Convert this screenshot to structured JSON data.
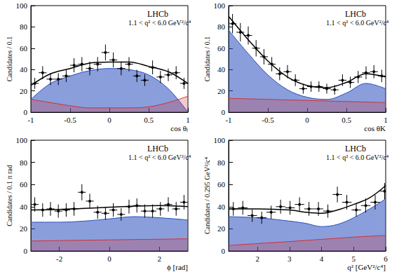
{
  "chart_data": [
    {
      "type": "scatter",
      "x_label": "cos θₗ",
      "y_label": "Candidates / 0.1",
      "annotations": [
        "LHCb",
        "1.1 < q² < 6.0 GeV²/c⁴"
      ],
      "xlim": [
        -1,
        1
      ],
      "xticks": [
        -1,
        -0.5,
        0,
        0.5,
        1
      ],
      "ylim": [
        0,
        100
      ],
      "yticks": [
        0,
        20,
        40,
        60,
        80,
        100
      ],
      "series": [
        {
          "type": "area",
          "color": "#2a4fc0",
          "x": [
            -1,
            -0.75,
            -0.5,
            -0.25,
            0,
            0.25,
            0.5,
            0.75,
            1
          ],
          "values": [
            12,
            27,
            34,
            39,
            41,
            40,
            35,
            22,
            0
          ]
        },
        {
          "type": "area",
          "color": "#d23030",
          "x": [
            -1,
            -0.75,
            -0.5,
            -0.25,
            0,
            0.25,
            0.5,
            0.75,
            1
          ],
          "values": [
            12,
            9,
            6,
            4,
            4,
            4,
            5,
            9,
            15
          ]
        },
        {
          "type": "line",
          "color": "#000000",
          "x": [
            -1,
            -0.75,
            -0.5,
            -0.25,
            0,
            0.25,
            0.5,
            0.75,
            1
          ],
          "values": [
            25,
            36,
            41,
            46,
            47,
            47,
            43,
            38,
            27
          ]
        },
        {
          "type": "scatter",
          "color": "#000000",
          "x": [
            -0.95,
            -0.85,
            -0.75,
            -0.65,
            -0.55,
            -0.45,
            -0.35,
            -0.25,
            -0.15,
            -0.05,
            0.05,
            0.15,
            0.25,
            0.35,
            0.45,
            0.55,
            0.65,
            0.75,
            0.85,
            0.95
          ],
          "values": [
            27,
            37,
            31,
            31,
            34,
            44,
            45,
            41,
            45,
            56,
            49,
            41,
            45,
            34,
            30,
            42,
            33,
            35,
            37,
            27
          ],
          "yerr": [
            5.2,
            6.1,
            5.6,
            5.6,
            5.8,
            6.6,
            6.7,
            6.4,
            6.7,
            7.5,
            7.0,
            6.4,
            6.7,
            5.8,
            5.5,
            6.5,
            5.7,
            5.9,
            6.1,
            5.2
          ],
          "xerr": 0.05
        }
      ]
    },
    {
      "type": "scatter",
      "x_label": "cos θK",
      "y_label": "Candidates / 0.1",
      "annotations": [
        "LHCb",
        "1.1 < q² < 6.0 GeV²/c⁴"
      ],
      "xlim": [
        -1,
        1
      ],
      "xticks": [
        -1,
        -0.5,
        0,
        0.5,
        1
      ],
      "ylim": [
        0,
        100
      ],
      "yticks": [
        0,
        20,
        40,
        60,
        80,
        100
      ],
      "series": [
        {
          "type": "area",
          "color": "#2a4fc0",
          "x": [
            -1,
            -0.75,
            -0.5,
            -0.25,
            0,
            0.25,
            0.5,
            0.75,
            1
          ],
          "values": [
            77,
            55,
            35,
            21,
            14,
            12,
            18,
            27,
            22
          ]
        },
        {
          "type": "area",
          "color": "#d23030",
          "x": [
            -1,
            -0.75,
            -0.5,
            -0.25,
            0,
            0.25,
            0.5,
            0.75,
            1
          ],
          "values": [
            13,
            12.5,
            12,
            11.5,
            11,
            10.5,
            10,
            9.5,
            9
          ]
        },
        {
          "type": "line",
          "color": "#000000",
          "x": [
            -1,
            -0.75,
            -0.5,
            -0.25,
            0,
            0.25,
            0.5,
            0.75,
            1
          ],
          "values": [
            90,
            68,
            48,
            33,
            25,
            23,
            28,
            36,
            33
          ]
        },
        {
          "type": "scatter",
          "color": "#000000",
          "x": [
            -0.95,
            -0.85,
            -0.75,
            -0.65,
            -0.55,
            -0.45,
            -0.35,
            -0.25,
            -0.15,
            -0.05,
            0.05,
            0.15,
            0.25,
            0.35,
            0.45,
            0.55,
            0.65,
            0.75,
            0.85,
            0.95
          ],
          "values": [
            83,
            75,
            72,
            60,
            52,
            45,
            36,
            38,
            30,
            22,
            24,
            24,
            22,
            21,
            30,
            28,
            33,
            37,
            38,
            34
          ],
          "yerr": [
            9.1,
            8.7,
            8.5,
            7.7,
            7.2,
            6.7,
            6.0,
            6.2,
            5.5,
            4.7,
            4.9,
            4.9,
            4.7,
            4.6,
            5.5,
            5.3,
            5.7,
            6.1,
            6.2,
            5.8
          ],
          "xerr": 0.05
        }
      ]
    },
    {
      "type": "scatter",
      "x_label": "ϕ [rad]",
      "y_label": "Candidates / 0.1 π rad",
      "annotations": [
        "LHCb",
        "1.1 < q² < 6.0 GeV²/c⁴"
      ],
      "xlim": [
        -3.14159,
        3.14159
      ],
      "xticks": [
        -2,
        0,
        2
      ],
      "ylim": [
        0,
        100
      ],
      "yticks": [
        0,
        20,
        40,
        60,
        80,
        100
      ],
      "series": [
        {
          "type": "area",
          "color": "#2a4fc0",
          "x": [
            -3.14159,
            -2,
            -1,
            0,
            1,
            2,
            3.14159
          ],
          "values": [
            26,
            26,
            27,
            29,
            31,
            30,
            28
          ]
        },
        {
          "type": "area",
          "color": "#d23030",
          "x": [
            -3.14159,
            -2,
            -1,
            0,
            1,
            2,
            3.14159
          ],
          "values": [
            9,
            9.4,
            9.7,
            10,
            10.3,
            10.6,
            11
          ]
        },
        {
          "type": "line",
          "color": "#000000",
          "x": [
            -3.14159,
            -2,
            -1,
            0,
            1,
            2,
            3.14159
          ],
          "values": [
            37,
            37.5,
            38.5,
            39.5,
            40.5,
            41,
            40
          ]
        },
        {
          "type": "scatter",
          "color": "#000000",
          "x": [
            -2.985,
            -2.67,
            -2.356,
            -2.042,
            -1.728,
            -1.414,
            -1.1,
            -0.785,
            -0.471,
            -0.157,
            0.157,
            0.471,
            0.785,
            1.1,
            1.414,
            1.728,
            2.042,
            2.356,
            2.67,
            2.985
          ],
          "values": [
            42,
            37,
            38,
            36,
            37,
            38,
            53,
            45,
            35,
            34,
            37,
            33,
            40,
            41,
            36,
            36,
            38,
            42,
            38,
            44
          ],
          "yerr": [
            6.5,
            6.1,
            6.2,
            6.0,
            6.1,
            6.2,
            7.3,
            6.7,
            5.9,
            5.8,
            6.1,
            5.7,
            6.3,
            6.4,
            6.0,
            6.0,
            6.2,
            6.5,
            6.2,
            6.6
          ],
          "xerr": 0.15708
        }
      ]
    },
    {
      "type": "scatter",
      "x_label": "q² [GeV²/c⁴]",
      "y_label": "Candidates / 0.295 GeV²/c⁴",
      "annotations": [
        "LHCb",
        "1.1 < q² < 6.0 GeV²/c⁴"
      ],
      "xlim": [
        1.1,
        6.0
      ],
      "xticks": [
        2,
        3,
        4,
        5,
        6
      ],
      "ylim": [
        0,
        100
      ],
      "yticks": [
        0,
        20,
        40,
        60,
        80,
        100
      ],
      "series": [
        {
          "type": "area",
          "color": "#2a4fc0",
          "x": [
            1.1,
            2,
            3,
            3.5,
            4,
            4.5,
            5,
            5.5,
            6
          ],
          "values": [
            31,
            30,
            27,
            25,
            22,
            24,
            30,
            38,
            47
          ]
        },
        {
          "type": "area",
          "color": "#d23030",
          "x": [
            1.1,
            2,
            3,
            3.5,
            4,
            4.5,
            5,
            5.5,
            6
          ],
          "values": [
            5,
            6.7,
            8.5,
            9.5,
            10.5,
            11.5,
            12.5,
            13.3,
            14
          ]
        },
        {
          "type": "line",
          "color": "#000000",
          "x": [
            1.1,
            2,
            3,
            3.5,
            4,
            4.5,
            5,
            5.5,
            6
          ],
          "values": [
            38,
            38,
            37,
            35,
            34,
            37,
            42,
            48,
            59
          ]
        },
        {
          "type": "scatter",
          "color": "#000000",
          "x": [
            1.2475,
            1.5425,
            1.8375,
            2.1325,
            2.4275,
            2.7225,
            3.0175,
            3.3125,
            3.6075,
            3.9025,
            4.1975,
            4.4925,
            4.7875,
            5.0825,
            5.3775,
            5.6725,
            5.9675
          ],
          "values": [
            38,
            39,
            32,
            30,
            35,
            40,
            39,
            42,
            38,
            38,
            36,
            51,
            44,
            37,
            41,
            44,
            54
          ],
          "yerr": [
            6.2,
            6.2,
            5.7,
            5.5,
            5.9,
            6.3,
            6.2,
            6.5,
            6.2,
            6.2,
            6.0,
            7.1,
            6.6,
            6.1,
            6.4,
            6.6,
            7.3
          ],
          "xerr": 0.1475
        }
      ]
    }
  ]
}
